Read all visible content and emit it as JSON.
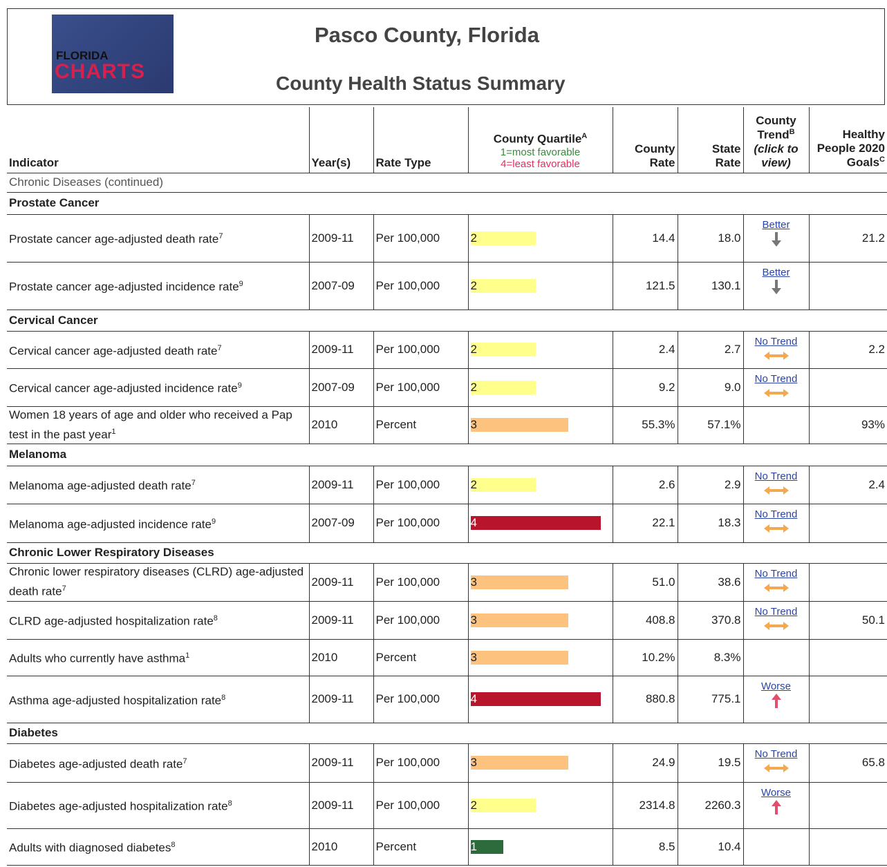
{
  "header": {
    "logo": {
      "line1": "FLORIDA",
      "line2": "CHARTS"
    },
    "title": "Pasco County, Florida",
    "subtitle": "County Health Status Summary"
  },
  "table": {
    "columns": {
      "indicator": "Indicator",
      "years": "Year(s)",
      "rate_type": "Rate Type",
      "quartile": {
        "title": "County Quartile",
        "note": "A",
        "best": "1=most favorable",
        "worst": "4=least favorable"
      },
      "county": "County Rate",
      "state": "State Rate",
      "trend": {
        "title": "County Trend",
        "note": "B",
        "hint": "(click to view)"
      },
      "goals": {
        "title": "Healthy People 2020 Goals",
        "note": "C"
      }
    },
    "quartile_colors": {
      "1": "#2d6a3c",
      "2": "#ffff8c",
      "3": "#fcc27e",
      "4": "#b8152c"
    },
    "category": "Chronic Diseases (continued)",
    "sections": [
      {
        "name": "Prostate Cancer",
        "rows": [
          {
            "indicator": "Prostate cancer age-adjusted death rate",
            "note": "7",
            "years": "2009-11",
            "rate_type": "Per 100,000",
            "quartile": 2,
            "county": "14.4",
            "state": "18.0",
            "trend": "Better",
            "goal": "21.2"
          },
          {
            "indicator": "Prostate cancer age-adjusted incidence rate",
            "note": "9",
            "years": "2007-09",
            "rate_type": "Per 100,000",
            "quartile": 2,
            "county": "121.5",
            "state": "130.1",
            "trend": "Better"
          }
        ]
      },
      {
        "name": "Cervical Cancer",
        "rows": [
          {
            "indicator": "Cervical cancer age-adjusted death rate",
            "note": "7",
            "years": "2009-11",
            "rate_type": "Per 100,000",
            "quartile": 2,
            "county": "2.4",
            "state": "2.7",
            "trend": "No Trend",
            "goal": "2.2"
          },
          {
            "indicator": "Cervical cancer age-adjusted incidence rate",
            "note": "9",
            "years": "2007-09",
            "rate_type": "Per 100,000",
            "quartile": 2,
            "county": "9.2",
            "state": "9.0",
            "trend": "No Trend"
          },
          {
            "indicator": "Women 18 years of age and older who received a Pap test in the past year",
            "note": "1",
            "years": "2010",
            "rate_type": "Percent",
            "quartile": 3,
            "county": "55.3%",
            "state": "57.1%",
            "goal": "93%"
          }
        ]
      },
      {
        "name": "Melanoma",
        "rows": [
          {
            "indicator": "Melanoma age-adjusted death rate",
            "note": "7",
            "years": "2009-11",
            "rate_type": "Per 100,000",
            "quartile": 2,
            "county": "2.6",
            "state": "2.9",
            "trend": "No Trend",
            "goal": "2.4"
          },
          {
            "indicator": "Melanoma age-adjusted incidence rate",
            "note": "9",
            "years": "2007-09",
            "rate_type": "Per 100,000",
            "quartile": 4,
            "county": "22.1",
            "state": "18.3",
            "trend": "No Trend"
          }
        ]
      },
      {
        "name": "Chronic Lower Respiratory Diseases",
        "rows": [
          {
            "indicator": "Chronic lower respiratory diseases (CLRD) age-adjusted death rate",
            "note": "7",
            "years": "2009-11",
            "rate_type": "Per 100,000",
            "quartile": 3,
            "county": "51.0",
            "state": "38.6",
            "trend": "No Trend"
          },
          {
            "indicator": "CLRD age-adjusted hospitalization rate",
            "note": "8",
            "years": "2009-11",
            "rate_type": "Per 100,000",
            "quartile": 3,
            "county": "408.8",
            "state": "370.8",
            "trend": "No Trend",
            "goal": "50.1"
          },
          {
            "indicator": "Adults who currently have asthma",
            "note": "1",
            "years": "2010",
            "rate_type": "Percent",
            "quartile": 3,
            "county": "10.2%",
            "state": "8.3%"
          },
          {
            "indicator": "Asthma age-adjusted hospitalization rate",
            "note": "8",
            "years": "2009-11",
            "rate_type": "Per 100,000",
            "quartile": 4,
            "county": "880.8",
            "state": "775.1",
            "trend": "Worse"
          }
        ]
      },
      {
        "name": "Diabetes",
        "rows": [
          {
            "indicator": "Diabetes age-adjusted death rate",
            "note": "7",
            "years": "2009-11",
            "rate_type": "Per 100,000",
            "quartile": 3,
            "county": "24.9",
            "state": "19.5",
            "trend": "No Trend",
            "goal": "65.8"
          },
          {
            "indicator": "Diabetes age-adjusted hospitalization rate",
            "note": "8",
            "years": "2009-11",
            "rate_type": "Per 100,000",
            "quartile": 2,
            "county": "2314.8",
            "state": "2260.3",
            "trend": "Worse"
          },
          {
            "indicator": "Adults with diagnosed diabetes",
            "note": "8",
            "years": "2010",
            "rate_type": "Percent",
            "quartile": 1,
            "county": "8.5",
            "state": "10.4"
          }
        ]
      }
    ]
  }
}
